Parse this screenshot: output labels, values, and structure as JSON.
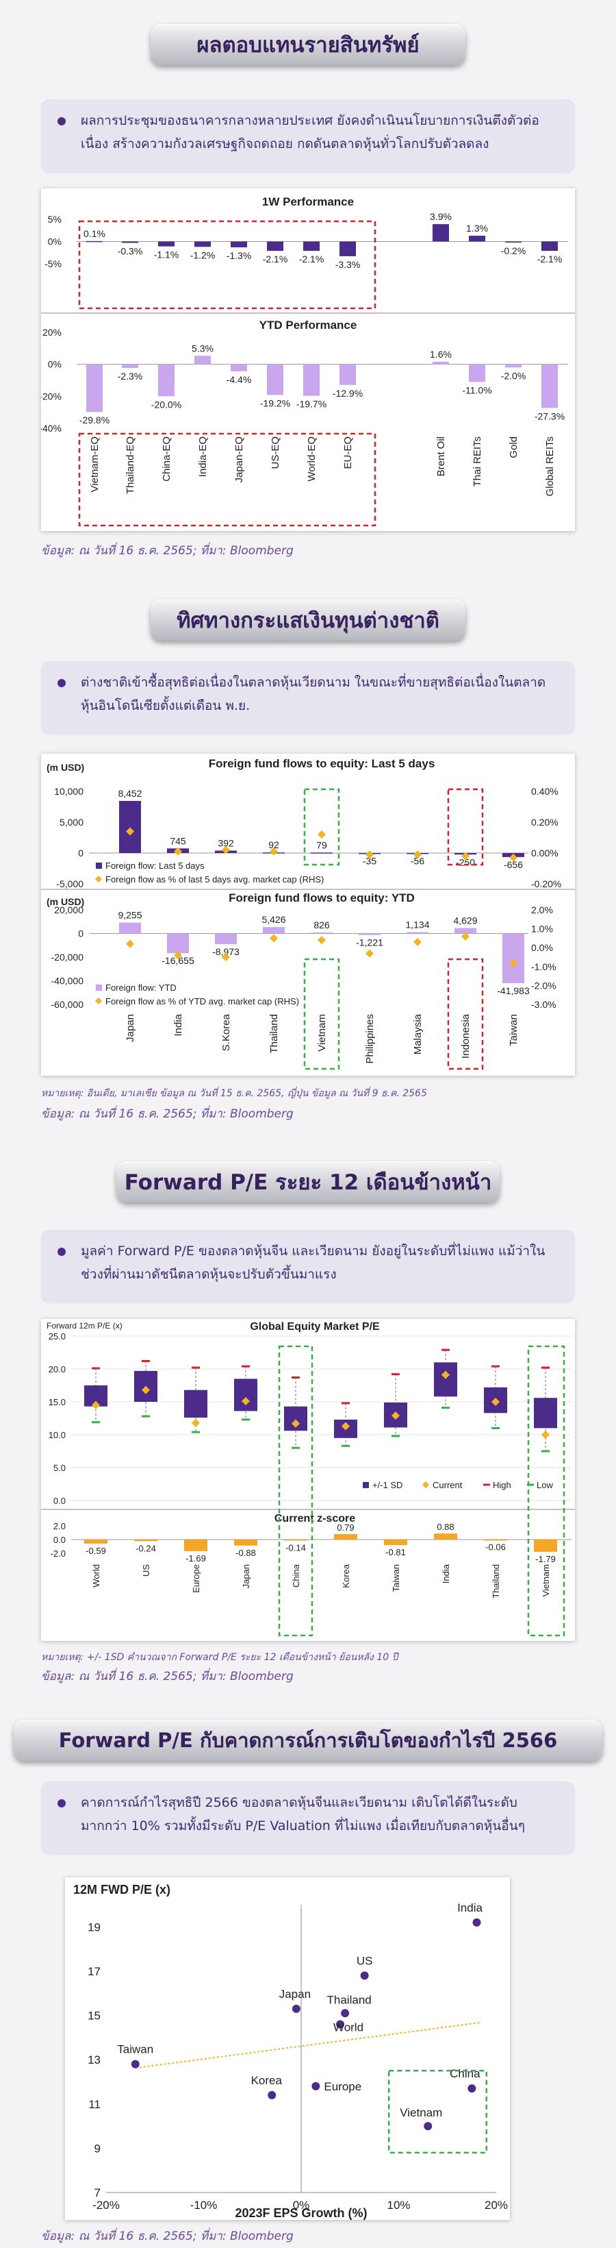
{
  "s1": {
    "title": "ผลตอบแทนรายสินทรัพย์",
    "bullet": "ผลการประชุมของธนาคารกลางหลายประเทศ ยังคงดำเนินนโยบายการเงินตึงตัวต่อเนื่อง สร้างความกังวลเศรษฐกิจถดถอย กดดันตลาดหุ้นทั่วโลกปรับตัวลดลง",
    "source": "ข้อมูล: ณ วันที่ 16 ธ.ค. 2565; ที่มา: Bloomberg"
  },
  "s2": {
    "title": "ทิศทางกระแสเงินทุนต่างชาติ",
    "bullet": "ต่างชาติเข้าซื้อสุทธิต่อเนื่องในตลาดหุ้นเวียดนาม ในขณะที่ขายสุทธิต่อเนื่องในตลาดหุ้นอินโดนีเซียตั้งแต่เดือน พ.ย.",
    "note": "หมายเหตุ: อินเดีย, มาเลเซีย ข้อมูล ณ วันที่ 15 ธ.ค. 2565, ญี่ปุ่น ข้อมูล ณ วันที่ 9 ธ.ค. 2565",
    "source": "ข้อมูล: ณ วันที่ 16 ธ.ค. 2565; ที่มา: Bloomberg"
  },
  "s3": {
    "title": "Forward P/E ระยะ 12 เดือนข้างหน้า",
    "bullet": "มูลค่า Forward P/E ของตลาดหุ้นจีน และเวียดนาม ยังอยู่ในระดับที่ไม่แพง แม้ว่าในช่วงที่ผ่านมาดัชนีตลาดหุ้นจะปรับตัวขึ้นมาแรง",
    "note": "หมายเหตุ: +/- 1SD คำนวณจาก Forward P/E ระยะ 12 เดือนข้างหน้า ย้อนหลัง 10 ปี",
    "source": "ข้อมูล: ณ วันที่ 16 ธ.ค. 2565; ที่มา: Bloomberg"
  },
  "s4": {
    "title": "Forward P/E กับคาดการณ์การเติบโตของกำไรปี 2566",
    "bullet": "คาดการณ์กำไรสุทธิปี 2566 ของตลาดหุ้นจีนและเวียดนาม เติบโตได้ดีในระดับมากกว่า 10% รวมทั้งมีระดับ P/E Valuation ที่ไม่แพง เมื่อเทียบกับตลาดหุ้นอื่นๆ",
    "source": "ข้อมูล: ณ วันที่ 16 ธ.ค. 2565; ที่มา: Bloomberg"
  },
  "chart_data": [
    {
      "type": "bar",
      "title": "1W Performance",
      "categories": [
        "Vietnam-EQ",
        "Thailand-EQ",
        "China-EQ",
        "India-EQ",
        "Japan-EQ",
        "US-EQ",
        "World-EQ",
        "EU-EQ",
        "Brent Oil",
        "Thai REITs",
        "Gold",
        "Global REITs"
      ],
      "values": [
        0.1,
        -0.3,
        -1.1,
        -1.2,
        -1.3,
        -2.1,
        -2.1,
        -3.3,
        3.9,
        1.3,
        -0.2,
        -2.1
      ],
      "labels": [
        "0.1%",
        "-0.3%",
        "-1.1%",
        "-1.2%",
        "-1.3%",
        "-2.1%",
        "-2.1%",
        "-3.3%",
        "3.9%",
        "1.3%",
        "-0.2%",
        "-2.1%"
      ],
      "yticks": [
        "5%",
        "0%",
        "-5%"
      ],
      "ylim": [
        -5,
        5
      ],
      "colors": {
        "bar": "#4b2c8a"
      }
    },
    {
      "type": "bar",
      "title": "YTD Performance",
      "categories": [
        "Vietnam-EQ",
        "Thailand-EQ",
        "China-EQ",
        "India-EQ",
        "Japan-EQ",
        "US-EQ",
        "World-EQ",
        "EU-EQ",
        "Brent Oil",
        "Thai REITs",
        "Gold",
        "Global REITs"
      ],
      "values": [
        -29.8,
        -2.3,
        -20.0,
        5.3,
        -4.4,
        -19.2,
        -19.7,
        -12.9,
        1.6,
        -11.0,
        -2.0,
        -27.3
      ],
      "labels": [
        "-29.8%",
        "-2.3%",
        "-20.0%",
        "5.3%",
        "-4.4%",
        "-19.2%",
        "-19.7%",
        "-12.9%",
        "1.6%",
        "-11.0%",
        "-2.0%",
        "-27.3%"
      ],
      "yticks": [
        "20%",
        "0%",
        "-20%",
        "-40%"
      ],
      "ylim": [
        -40,
        20
      ],
      "colors": {
        "bar": "#c9a7ef"
      }
    },
    {
      "type": "bar",
      "title": "Foreign fund flows to equity: Last 5 days",
      "unit": "(m USD)",
      "categories": [
        "Japan",
        "India",
        "S.Korea",
        "Thailand",
        "Vietnam",
        "Philippines",
        "Malaysia",
        "Indonesia",
        "Taiwan"
      ],
      "series": [
        {
          "name": "Foreign flow: Last 5 days",
          "values": [
            8452,
            745,
            392,
            92,
            79,
            -35,
            -56,
            -250,
            -656
          ]
        },
        {
          "name": "Foreign flow as % of last 5 days avg. market cap (RHS)",
          "values": [
            0.14,
            0.01,
            0.02,
            0.01,
            0.12,
            -0.01,
            -0.01,
            -0.02,
            -0.03
          ]
        }
      ],
      "labels": [
        "8,452",
        "745",
        "392",
        "92",
        "79",
        "-35",
        "-56",
        "-250",
        "-656"
      ],
      "yticks": [
        "10,000",
        "5,000",
        "0",
        "-5,000"
      ],
      "ylim": [
        -5000,
        10000
      ],
      "y2ticks": [
        "0.40%",
        "0.20%",
        "0.00%",
        "-0.20%"
      ],
      "y2lim": [
        -0.2,
        0.4
      ],
      "colors": {
        "bar": "#4b2c8a",
        "marker": "#f4b324"
      }
    },
    {
      "type": "bar",
      "title": "Foreign fund flows to equity: YTD",
      "unit": "(m USD)",
      "categories": [
        "Japan",
        "India",
        "S.Korea",
        "Thailand",
        "Vietnam",
        "Philippines",
        "Malaysia",
        "Indonesia",
        "Taiwan"
      ],
      "series": [
        {
          "name": "Foreign flow: YTD",
          "values": [
            9255,
            -16655,
            -8973,
            5426,
            826,
            -1221,
            1134,
            4629,
            -41983
          ]
        },
        {
          "name": "Foreign flow as % of YTD avg. market cap (RHS)",
          "values": [
            0.2,
            -0.4,
            -0.5,
            0.5,
            0.4,
            -0.3,
            0.3,
            0.6,
            -0.8
          ]
        }
      ],
      "labels": [
        "9,255",
        "-16,655",
        "-8,973",
        "5,426",
        "826",
        "-1,221",
        "1,134",
        "4,629",
        "-41,983"
      ],
      "yticks": [
        "20,000",
        "0",
        "-20,000",
        "-40,000",
        "-60,000"
      ],
      "ylim": [
        -60000,
        20000
      ],
      "y2ticks": [
        "2.0%",
        "1.0%",
        "0.0%",
        "-1.0%",
        "-2.0%",
        "-3.0%"
      ],
      "y2lim": [
        -3,
        2
      ],
      "colors": {
        "bar": "#c9a7ef",
        "marker": "#f4b324"
      }
    },
    {
      "type": "bar",
      "title": "Global Equity Market P/E",
      "ylabel": "Forward 12m P/E (x)",
      "categories": [
        "World",
        "US",
        "Europe",
        "Japan",
        "China",
        "Korea",
        "Taiwan",
        "India",
        "Thailand",
        "Vietnam"
      ],
      "series": [
        {
          "name": "+/-1 SD",
          "low": [
            14.3,
            15.0,
            12.6,
            13.6,
            10.6,
            9.5,
            11.1,
            15.8,
            13.3,
            11.0
          ],
          "high": [
            17.5,
            19.7,
            16.8,
            18.5,
            14.3,
            12.3,
            14.9,
            21.0,
            17.2,
            15.6
          ]
        },
        {
          "name": "Current",
          "values": [
            14.5,
            16.8,
            11.8,
            15.1,
            11.7,
            11.3,
            12.9,
            19.1,
            15.0,
            10.0
          ]
        },
        {
          "name": "High",
          "values": [
            20.1,
            21.2,
            20.2,
            20.4,
            18.7,
            14.8,
            19.2,
            22.9,
            20.4,
            20.2
          ]
        },
        {
          "name": "Low",
          "values": [
            11.9,
            12.8,
            10.4,
            12.3,
            8.0,
            8.3,
            9.8,
            14.1,
            11.0,
            7.5
          ]
        }
      ],
      "yticks": [
        "25.0",
        "20.0",
        "15.0",
        "10.0",
        "5.0",
        "0.0"
      ],
      "ylim": [
        0,
        25
      ],
      "colors": {
        "sd": "#4b2c8a",
        "current": "#f4b324",
        "high": "#d2222d",
        "low": "#35b04a"
      }
    },
    {
      "type": "bar",
      "title": "Current z-score",
      "categories": [
        "World",
        "US",
        "Europe",
        "Japan",
        "China",
        "Korea",
        "Taiwan",
        "India",
        "Thailand",
        "Vietnam"
      ],
      "values": [
        -0.59,
        -0.24,
        -1.69,
        -0.88,
        -0.14,
        0.79,
        -0.81,
        0.88,
        -0.06,
        -1.79
      ],
      "labels": [
        "-0.59",
        "-0.24",
        "-1.69",
        "-0.88",
        "-0.14",
        "0.79",
        "-0.81",
        "0.88",
        "-0.06",
        "-1.79"
      ],
      "yticks": [
        "2.0",
        "0.0",
        "-2.0"
      ],
      "ylim": [
        -2,
        2
      ],
      "colors": {
        "bar": "#f5a623"
      }
    },
    {
      "type": "scatter",
      "ylabel": "12M FWD P/E (x)",
      "xlabel": "2023F EPS Growth (%)",
      "points": [
        {
          "name": "India",
          "x": 18,
          "y": 19.2
        },
        {
          "name": "US",
          "x": 6.5,
          "y": 16.8
        },
        {
          "name": "Japan",
          "x": -0.5,
          "y": 15.3
        },
        {
          "name": "Thailand",
          "x": 4.5,
          "y": 15.1
        },
        {
          "name": "World",
          "x": 4,
          "y": 14.6
        },
        {
          "name": "Taiwan",
          "x": -17,
          "y": 12.8
        },
        {
          "name": "Korea",
          "x": -3,
          "y": 11.4
        },
        {
          "name": "Europe",
          "x": 1.5,
          "y": 11.8
        },
        {
          "name": "China",
          "x": 17.5,
          "y": 11.7
        },
        {
          "name": "Vietnam",
          "x": 13,
          "y": 10.0
        }
      ],
      "xticks": [
        "-20%",
        "-10%",
        "0%",
        "10%",
        "20%"
      ],
      "xlim": [
        -20,
        20
      ],
      "yticks": [
        "19",
        "17",
        "15",
        "13",
        "11",
        "9",
        "7"
      ],
      "ylim": [
        7,
        20
      ],
      "trendline": true,
      "colors": {
        "point": "#4b2c8a",
        "trend": "#f4b324"
      }
    }
  ]
}
